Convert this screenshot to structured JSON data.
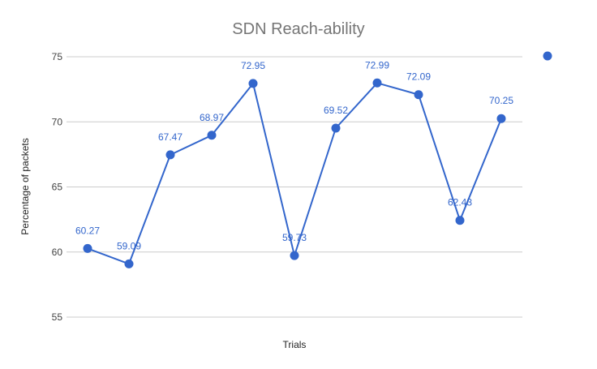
{
  "chart_data": {
    "type": "line",
    "title": "SDN Reach-ability",
    "xlabel": "Trials",
    "ylabel": "Percentage of packets",
    "ylim": [
      55,
      75
    ],
    "yticks": [
      55,
      60,
      65,
      70,
      75
    ],
    "grid": true,
    "legend": "right",
    "series": [
      {
        "color": "#3366cc",
        "values": [
          60.27,
          59.09,
          67.47,
          68.97,
          72.95,
          59.73,
          69.52,
          72.99,
          72.09,
          62.43,
          70.25
        ],
        "labels": [
          "60.27",
          "59.09",
          "67.47",
          "68.97",
          "72.95",
          "59.73",
          "69.52",
          "72.99",
          "72.09",
          "62.43",
          "70.25"
        ]
      }
    ]
  }
}
